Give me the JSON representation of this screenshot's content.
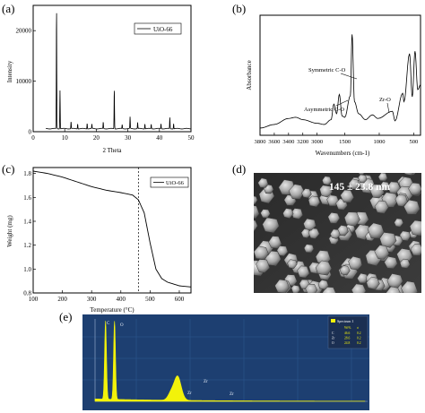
{
  "panels": {
    "a": {
      "label": "(a)"
    },
    "b": {
      "label": "(b)"
    },
    "c": {
      "label": "(c)"
    },
    "d": {
      "label": "(d)",
      "caption": "145 ± 23.8 nm"
    },
    "e": {
      "label": "(e)"
    }
  },
  "colors": {
    "line": "#000000",
    "eds_bg": "#1d3f71",
    "eds_peak": "#f2f20a",
    "legend_bg": "#1b2f52"
  },
  "chart_data": [
    {
      "panel": "a",
      "type": "line",
      "xlabel": "2 Theta",
      "ylabel": "Intensity",
      "xlim": [
        0,
        50
      ],
      "ylim": [
        0,
        25000
      ],
      "xticks": [
        "0",
        "10",
        "20",
        "30",
        "40",
        "50"
      ],
      "yticks": [
        "0",
        "10000",
        "20000"
      ],
      "legend": "UiO-66",
      "legend_position": "top-right",
      "series": [
        {
          "name": "UiO-66",
          "peaks": [
            [
              7.4,
              24000
            ],
            [
              8.5,
              7600
            ],
            [
              12.0,
              1400
            ],
            [
              14.1,
              1000
            ],
            [
              17.1,
              1100
            ],
            [
              18.6,
              900
            ],
            [
              22.2,
              1300
            ],
            [
              25.7,
              7900
            ],
            [
              28.2,
              800
            ],
            [
              30.7,
              2300
            ],
            [
              33.1,
              1200
            ],
            [
              35.4,
              1000
            ],
            [
              37.4,
              900
            ],
            [
              40.5,
              1000
            ],
            [
              43.3,
              2200
            ],
            [
              44.5,
              1000
            ]
          ],
          "baseline": 600
        }
      ]
    },
    {
      "panel": "b",
      "type": "line",
      "xlabel": "Wavenumbers (cm-1)",
      "ylabel": "Absorbance",
      "xlim": [
        3800,
        400
      ],
      "xticks": [
        "3800",
        "3600",
        "3400",
        "3200",
        "3000",
        "1500",
        "1000",
        "500"
      ],
      "annotations": [
        "Symmetric C-O",
        "Asymmetric C-O",
        "Zr-O"
      ],
      "series": [
        {
          "name": "UiO-66",
          "points": [
            [
              3800,
              0.06
            ],
            [
              3600,
              0.09
            ],
            [
              3400,
              0.14
            ],
            [
              3300,
              0.15
            ],
            [
              3200,
              0.13
            ],
            [
              3000,
              0.1
            ],
            [
              2900,
              0.09
            ],
            [
              1800,
              0.09
            ],
            [
              1700,
              0.13
            ],
            [
              1660,
              0.26
            ],
            [
              1620,
              0.18
            ],
            [
              1580,
              0.34
            ],
            [
              1540,
              0.16
            ],
            [
              1500,
              0.15
            ],
            [
              1420,
              0.33
            ],
            [
              1395,
              0.84
            ],
            [
              1360,
              0.28
            ],
            [
              1300,
              0.18
            ],
            [
              1200,
              0.13
            ],
            [
              1100,
              0.17
            ],
            [
              1020,
              0.14
            ],
            [
              810,
              0.2
            ],
            [
              770,
              0.12
            ],
            [
              660,
              0.35
            ],
            [
              640,
              0.28
            ],
            [
              560,
              0.68
            ],
            [
              520,
              0.32
            ],
            [
              480,
              0.7
            ],
            [
              440,
              0.38
            ],
            [
              400,
              0.42
            ]
          ]
        }
      ]
    },
    {
      "panel": "c",
      "type": "line",
      "xlabel": "Temperature (°C)",
      "ylabel": "Weight (mg)",
      "xlim": [
        100,
        640
      ],
      "ylim": [
        0.8,
        1.85
      ],
      "xticks": [
        "100",
        "200",
        "300",
        "400",
        "500",
        "600"
      ],
      "yticks": [
        "1.8",
        "1.6",
        "1.4",
        "1.2",
        "1.0",
        "0.8"
      ],
      "legend": "UiO-66",
      "legend_position": "top-right",
      "vline": 460,
      "series": [
        {
          "name": "UiO-66",
          "points": [
            [
              100,
              1.82
            ],
            [
              150,
              1.8
            ],
            [
              200,
              1.77
            ],
            [
              250,
              1.73
            ],
            [
              300,
              1.69
            ],
            [
              350,
              1.66
            ],
            [
              400,
              1.64
            ],
            [
              440,
              1.62
            ],
            [
              460,
              1.58
            ],
            [
              480,
              1.47
            ],
            [
              500,
              1.22
            ],
            [
              520,
              1.0
            ],
            [
              540,
              0.92
            ],
            [
              560,
              0.89
            ],
            [
              600,
              0.86
            ],
            [
              640,
              0.85
            ]
          ]
        }
      ]
    },
    {
      "panel": "e",
      "type": "line",
      "legend_title": "Spectrum 1",
      "table_header": [
        "",
        "Wt%",
        "σ"
      ],
      "table_rows": [
        [
          "C",
          "46.6",
          "0.2"
        ],
        [
          "Zr",
          "28.6",
          "0.2"
        ],
        [
          "O",
          "24.8",
          "0.2"
        ]
      ],
      "peak_labels": [
        "C",
        "O",
        "Zr",
        "Zr",
        "Zr"
      ],
      "peaks": [
        [
          0.28,
          0.95
        ],
        [
          0.52,
          0.95
        ],
        [
          2.04,
          0.1
        ],
        [
          2.3,
          0.04
        ],
        [
          2.2,
          0.26
        ]
      ]
    }
  ]
}
